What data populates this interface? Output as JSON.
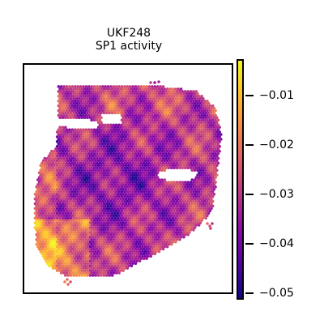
{
  "chart_data": {
    "type": "heatmap",
    "title": "UKF248",
    "subtitle": "SP1 activity",
    "colormap": "plasma",
    "colorbar": {
      "range": [
        -0.051,
        -0.003
      ],
      "ticks": [
        -0.01,
        -0.02,
        -0.03,
        -0.04,
        -0.05
      ],
      "tick_labels": [
        "−0.01",
        "−0.02",
        "−0.03",
        "−0.04",
        "−0.05"
      ]
    },
    "xticks": [],
    "yticks": []
  }
}
